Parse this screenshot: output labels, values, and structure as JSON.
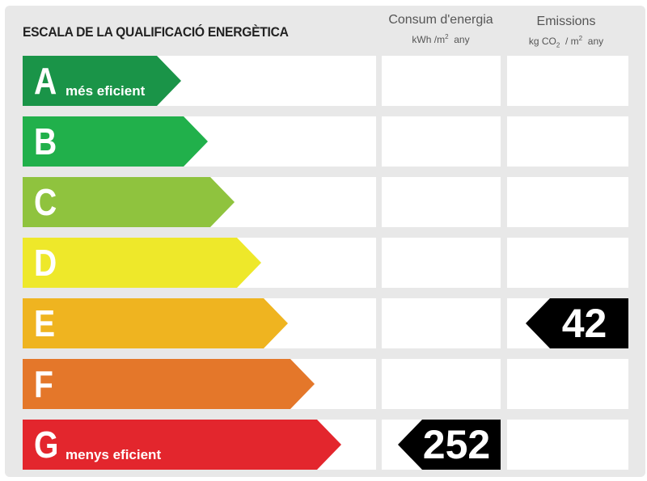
{
  "title": "ESCALA DE LA QUALIFICACIÓ ENERGÈTICA",
  "columns": {
    "energy": {
      "title": "Consum d'energia",
      "unit_pre": "kWh /m",
      "unit_sup": "2",
      "unit_post": "  any"
    },
    "emissions": {
      "title": "Emissions",
      "unit_pre": "kg CO",
      "unit_sub": "2",
      "unit_mid": "  / m",
      "unit_sup": "2",
      "unit_post": "  any"
    }
  },
  "classes": [
    {
      "letter": "A",
      "label": "més eficient",
      "color": "#1a9448"
    },
    {
      "letter": "B",
      "label": "",
      "color": "#21b04b"
    },
    {
      "letter": "C",
      "label": "",
      "color": "#8fc33e"
    },
    {
      "letter": "D",
      "label": "",
      "color": "#eee82a"
    },
    {
      "letter": "E",
      "label": "",
      "color": "#efb420"
    },
    {
      "letter": "F",
      "label": "",
      "color": "#e4772a"
    },
    {
      "letter": "G",
      "label": "menys eficient",
      "color": "#e3262d"
    }
  ],
  "ratings": {
    "energy": {
      "class": "G",
      "value": "252"
    },
    "emissions": {
      "class": "E",
      "value": "42"
    }
  },
  "indicator_color": "#000000"
}
